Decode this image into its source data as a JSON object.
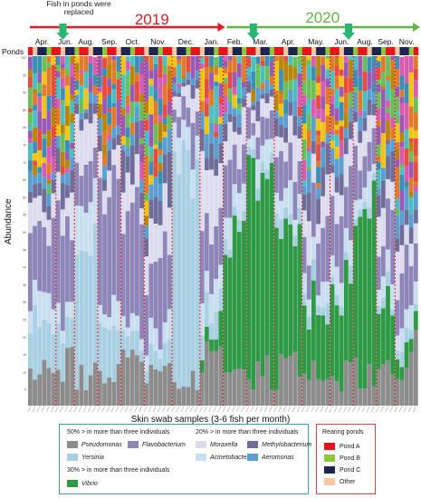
{
  "colors": {
    "Pseudomonas": "#8c8c8c",
    "Flavobacterium": "#8e86b8",
    "Yersinia": "#a8cfe2",
    "Moraxella": "#dcdcee",
    "Acinetobacter": "#c9dff0",
    "Methylobacterium": "#6f6e9a",
    "Aeromonas": "#5b9fd0",
    "Vibrio": "#2e9a45",
    "Other": "#f7c7a0",
    "pondA": "#e8141b",
    "pondB": "#8dc63f",
    "pondC": "#1c2452",
    "pondOther": "#f7c7a0",
    "arrow2019": "#e31b23",
    "arrow2020": "#5fb846",
    "marker": "#2bb673",
    "divider": "#e02020"
  },
  "annotation": "Fish in ponds were replaced",
  "years": {
    "y2019": "2019",
    "y2020": "2020"
  },
  "ponds_label": "Ponds",
  "legend": {
    "groups": {
      "g1": "50% > in more than three individuals",
      "g2": "20% > in more than three individuals",
      "g3": "30% > in more than three individuals"
    },
    "items": {
      "Pseudomonas": "Pseudomonas",
      "Flavobacterium": "Flavobacterium",
      "Yersinia": "Yersinia",
      "Moraxella": "Moraxella",
      "Methylobacterium": "Methylobacterium",
      "Acinetobacter": "Acinetobacter",
      "Aeromonas": "Aeromonas",
      "Vibrio": "Vibrio"
    },
    "ponds_title": "Rearing ponds",
    "ponds": {
      "a": "Pond A",
      "b": "Pond B",
      "c": "Pond C",
      "other": "Other"
    }
  },
  "chart_data": {
    "type": "bar",
    "stacked": true,
    "ylabel": "Abundance",
    "xlabel": "Skin swab samples  (3-6  fish per month)",
    "ylim": [
      0,
      100
    ],
    "y_tick_labels": [
      "100",
      "95",
      "90",
      "85",
      "80",
      "75",
      "70",
      "65",
      "60",
      "55",
      "50",
      "45",
      "40",
      "35",
      "30",
      "25",
      "20",
      "15",
      "10",
      "5"
    ],
    "months": [
      {
        "label": "Apr.",
        "samples": 6
      },
      {
        "label": "Jun.",
        "samples": 4
      },
      {
        "label": "Aug.",
        "samples": 5
      },
      {
        "label": "Sep.",
        "samples": 5
      },
      {
        "label": "Oct.",
        "samples": 5
      },
      {
        "label": "Nov.",
        "samples": 6
      },
      {
        "label": "Dec.",
        "samples": 6
      },
      {
        "label": "Jan.",
        "samples": 5
      },
      {
        "label": "Feb.",
        "samples": 5
      },
      {
        "label": "Mar.",
        "samples": 6
      },
      {
        "label": "Apr.",
        "samples": 6
      },
      {
        "label": "May.",
        "samples": 6
      },
      {
        "label": "Jun.",
        "samples": 5
      },
      {
        "label": "Aug.",
        "samples": 5
      },
      {
        "label": "Sep.",
        "samples": 4
      },
      {
        "label": "Nov.",
        "samples": 5
      }
    ],
    "series_order": [
      "Pseudomonas",
      "Vibrio",
      "Yersinia",
      "Acinetobacter",
      "Flavobacterium",
      "Moraxella",
      "Methylobacterium",
      "Aeromonas",
      "Other"
    ],
    "monthly_mean_composition": [
      {
        "Pseudomonas": 10,
        "Vibrio": 0,
        "Yersinia": 15,
        "Acinetobacter": 8,
        "Flavobacterium": 22,
        "Moraxella": 8,
        "Methylobacterium": 5,
        "Aeromonas": 4,
        "Other": 28
      },
      {
        "Pseudomonas": 12,
        "Vibrio": 0,
        "Yersinia": 10,
        "Acinetobacter": 6,
        "Flavobacterium": 28,
        "Moraxella": 10,
        "Methylobacterium": 6,
        "Aeromonas": 3,
        "Other": 25
      },
      {
        "Pseudomonas": 8,
        "Vibrio": 0,
        "Yersinia": 45,
        "Acinetobacter": 10,
        "Flavobacterium": 10,
        "Moraxella": 10,
        "Methylobacterium": 3,
        "Aeromonas": 2,
        "Other": 12
      },
      {
        "Pseudomonas": 10,
        "Vibrio": 0,
        "Yersinia": 12,
        "Acinetobacter": 6,
        "Flavobacterium": 30,
        "Moraxella": 8,
        "Methylobacterium": 6,
        "Aeromonas": 4,
        "Other": 24
      },
      {
        "Pseudomonas": 12,
        "Vibrio": 0,
        "Yersinia": 6,
        "Acinetobacter": 5,
        "Flavobacterium": 28,
        "Moraxella": 8,
        "Methylobacterium": 8,
        "Aeromonas": 3,
        "Other": 30
      },
      {
        "Pseudomonas": 10,
        "Vibrio": 0,
        "Yersinia": 5,
        "Acinetobacter": 5,
        "Flavobacterium": 22,
        "Moraxella": 10,
        "Methylobacterium": 10,
        "Aeromonas": 5,
        "Other": 33
      },
      {
        "Pseudomonas": 6,
        "Vibrio": 0,
        "Yersinia": 60,
        "Acinetobacter": 10,
        "Flavobacterium": 6,
        "Moraxella": 6,
        "Methylobacterium": 2,
        "Aeromonas": 2,
        "Other": 8
      },
      {
        "Pseudomonas": 12,
        "Vibrio": 5,
        "Yersinia": 6,
        "Acinetobacter": 8,
        "Flavobacterium": 18,
        "Moraxella": 15,
        "Methylobacterium": 6,
        "Aeromonas": 5,
        "Other": 25
      },
      {
        "Pseudomonas": 8,
        "Vibrio": 45,
        "Yersinia": 3,
        "Acinetobacter": 6,
        "Flavobacterium": 10,
        "Moraxella": 8,
        "Methylobacterium": 4,
        "Aeromonas": 3,
        "Other": 13
      },
      {
        "Pseudomonas": 8,
        "Vibrio": 55,
        "Yersinia": 3,
        "Acinetobacter": 5,
        "Flavobacterium": 8,
        "Moraxella": 6,
        "Methylobacterium": 3,
        "Aeromonas": 2,
        "Other": 10
      },
      {
        "Pseudomonas": 10,
        "Vibrio": 40,
        "Yersinia": 4,
        "Acinetobacter": 6,
        "Flavobacterium": 10,
        "Moraxella": 8,
        "Methylobacterium": 4,
        "Aeromonas": 3,
        "Other": 15
      },
      {
        "Pseudomonas": 10,
        "Vibrio": 20,
        "Yersinia": 4,
        "Acinetobacter": 6,
        "Flavobacterium": 14,
        "Moraxella": 8,
        "Methylobacterium": 6,
        "Aeromonas": 4,
        "Other": 28
      },
      {
        "Pseudomonas": 8,
        "Vibrio": 30,
        "Yersinia": 3,
        "Acinetobacter": 6,
        "Flavobacterium": 14,
        "Moraxella": 8,
        "Methylobacterium": 5,
        "Aeromonas": 4,
        "Other": 22
      },
      {
        "Pseudomonas": 8,
        "Vibrio": 50,
        "Yersinia": 3,
        "Acinetobacter": 5,
        "Flavobacterium": 10,
        "Moraxella": 6,
        "Methylobacterium": 3,
        "Aeromonas": 3,
        "Other": 12
      },
      {
        "Pseudomonas": 12,
        "Vibrio": 15,
        "Yersinia": 3,
        "Acinetobacter": 6,
        "Flavobacterium": 14,
        "Moraxella": 10,
        "Methylobacterium": 6,
        "Aeromonas": 4,
        "Other": 30
      },
      {
        "Pseudomonas": 15,
        "Vibrio": 5,
        "Yersinia": 3,
        "Acinetobacter": 6,
        "Flavobacterium": 14,
        "Moraxella": 10,
        "Methylobacterium": 6,
        "Aeromonas": 5,
        "Other": 36
      }
    ],
    "legend": [
      "Pseudomonas",
      "Flavobacterium",
      "Yersinia",
      "Moraxella",
      "Methylobacterium",
      "Acinetobacter",
      "Aeromonas",
      "Vibrio"
    ]
  }
}
